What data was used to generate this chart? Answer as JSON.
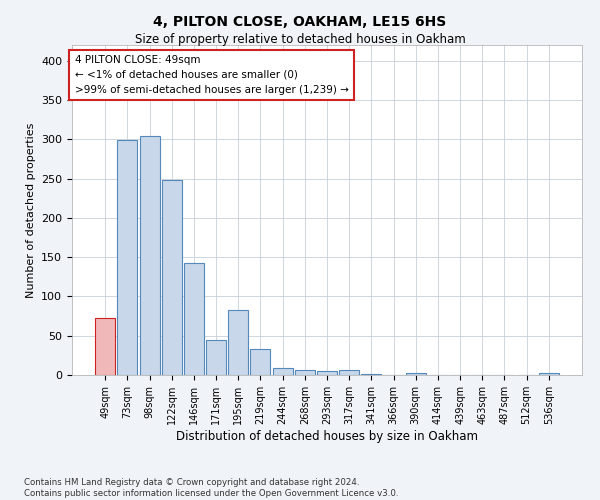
{
  "title": "4, PILTON CLOSE, OAKHAM, LE15 6HS",
  "subtitle": "Size of property relative to detached houses in Oakham",
  "xlabel": "Distribution of detached houses by size in Oakham",
  "ylabel": "Number of detached properties",
  "categories": [
    "49sqm",
    "73sqm",
    "98sqm",
    "122sqm",
    "146sqm",
    "171sqm",
    "195sqm",
    "219sqm",
    "244sqm",
    "268sqm",
    "293sqm",
    "317sqm",
    "341sqm",
    "366sqm",
    "390sqm",
    "414sqm",
    "439sqm",
    "463sqm",
    "487sqm",
    "512sqm",
    "536sqm"
  ],
  "values": [
    72,
    299,
    304,
    248,
    143,
    45,
    83,
    33,
    9,
    6,
    5,
    6,
    1,
    0,
    3,
    0,
    0,
    0,
    0,
    0,
    3
  ],
  "bar_color": "#c8d8ea",
  "bar_edge_color": "#5588bb",
  "highlight_bar_color": "#f0b8b8",
  "highlight_bar_edge_color": "#cc2222",
  "highlight_index": 0,
  "annotation_text": "4 PILTON CLOSE: 49sqm\n← <1% of detached houses are smaller (0)\n>99% of semi-detached houses are larger (1,239) →",
  "annotation_box_facecolor": "#ffffff",
  "annotation_box_edgecolor": "#cc2222",
  "ylim": [
    0,
    420
  ],
  "yticks": [
    0,
    50,
    100,
    150,
    200,
    250,
    300,
    350,
    400
  ],
  "grid_color": "#c8d0d8",
  "background_color": "#f0f4f8",
  "plot_bg_color": "#ffffff",
  "footer_line1": "Contains HM Land Registry data © Crown copyright and database right 2024.",
  "footer_line2": "Contains public sector information licensed under the Open Government Licence v3.0."
}
